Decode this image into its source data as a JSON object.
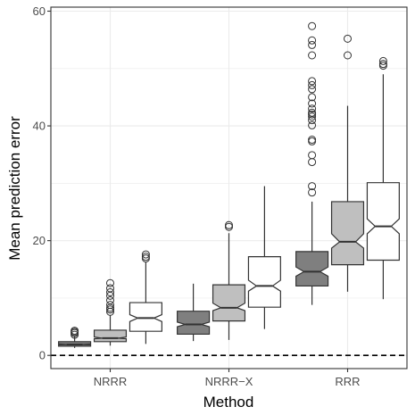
{
  "chart_data": {
    "type": "box",
    "xlabel": "Method",
    "ylabel": "Mean prediction error",
    "ylim": [
      -2.3,
      60.7
    ],
    "y_ticks": [
      0,
      20,
      40,
      60
    ],
    "grid": true,
    "reference_line": {
      "y": 0,
      "style": "dashed"
    },
    "categories": [
      "NRRR",
      "NRRR−X",
      "RRR"
    ],
    "series": [
      {
        "fill": "#7f7f7f",
        "boxes": [
          {
            "category": "NRRR",
            "whisker_low": 1.3,
            "q1": 1.6,
            "median": 1.9,
            "q3": 2.4,
            "whisker_high": 3.4,
            "notch_low": 1.85,
            "notch_high": 2.0,
            "outliers": [
              3.6,
              3.9,
              4.1,
              4.3
            ]
          },
          {
            "category": "NRRR−X",
            "whisker_low": 2.5,
            "q1": 3.7,
            "median": 5.4,
            "q3": 7.7,
            "whisker_high": 12.5,
            "notch_low": 5.0,
            "notch_high": 5.8,
            "outliers": []
          },
          {
            "category": "RRR",
            "whisker_low": 8.8,
            "q1": 12.1,
            "median": 14.6,
            "q3": 18.1,
            "whisker_high": 26.8,
            "notch_low": 13.8,
            "notch_high": 15.4,
            "outliers": [
              28.4,
              29.5,
              33.7,
              34.9,
              37.3,
              37.6,
              40.1,
              41.0,
              41.6,
              42.0,
              42.3,
              43.0,
              43.9,
              45.0,
              46.4,
              47.1,
              47.8,
              52.3,
              54.1,
              54.9,
              57.4
            ]
          }
        ]
      },
      {
        "fill": "#bfbfbf",
        "boxes": [
          {
            "category": "NRRR",
            "whisker_low": 1.7,
            "q1": 2.4,
            "median": 3.0,
            "q3": 4.4,
            "whisker_high": 7.0,
            "notch_low": 2.9,
            "notch_high": 3.2,
            "outliers": [
              7.6,
              8.0,
              8.3,
              8.8,
              9.6,
              10.4,
              11.0,
              11.7,
              12.6
            ]
          },
          {
            "category": "NRRR−X",
            "whisker_low": 2.7,
            "q1": 6.0,
            "median": 8.3,
            "q3": 12.3,
            "whisker_high": 21.3,
            "notch_low": 7.8,
            "notch_high": 9.1,
            "outliers": [
              22.4,
              22.7
            ]
          },
          {
            "category": "RRR",
            "whisker_low": 11.1,
            "q1": 15.8,
            "median": 19.8,
            "q3": 26.8,
            "whisker_high": 43.5,
            "notch_low": 18.7,
            "notch_high": 21.2,
            "outliers": [
              52.3,
              55.2
            ]
          }
        ]
      },
      {
        "fill": "#ffffff",
        "boxes": [
          {
            "category": "NRRR",
            "whisker_low": 2.0,
            "q1": 4.2,
            "median": 6.5,
            "q3": 9.2,
            "whisker_high": 16.3,
            "notch_low": 5.9,
            "notch_high": 7.1,
            "outliers": [
              16.9,
              17.2,
              17.6
            ]
          },
          {
            "category": "NRRR−X",
            "whisker_low": 4.6,
            "q1": 8.4,
            "median": 12.1,
            "q3": 17.2,
            "whisker_high": 29.5,
            "notch_low": 11.2,
            "notch_high": 13.1,
            "outliers": []
          },
          {
            "category": "RRR",
            "whisker_low": 9.8,
            "q1": 16.6,
            "median": 22.5,
            "q3": 30.1,
            "whisker_high": 49.0,
            "notch_low": 21.2,
            "notch_high": 23.8,
            "outliers": [
              50.5,
              50.8,
              51.3
            ]
          }
        ]
      }
    ]
  }
}
